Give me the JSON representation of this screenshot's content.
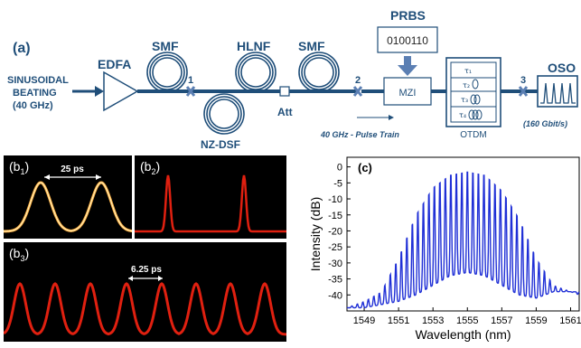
{
  "setup": {
    "panel_label": "(a)",
    "input_label_lines": [
      "SINUSOIDAL",
      "BEATING",
      "(40 GHz)"
    ],
    "edfa": "EDFA",
    "smf1": "SMF",
    "hlnf": "HLNF",
    "smf2": "SMF",
    "nzdsf": "NZ-DSF",
    "att": "Att",
    "prbs": "PRBS",
    "prbs_code": "0100110",
    "mzi": "MZI",
    "otdm": "OTDM",
    "oso": "OSO",
    "oso_rate": "(160 Gbit/s)",
    "pulse_train": "40 GHz - Pulse Train",
    "points": [
      "1",
      "2",
      "3"
    ],
    "delays": [
      "τ₁",
      "τ₂",
      "τ₃",
      "τ₄"
    ]
  },
  "osc": {
    "b1": {
      "label_main": "(b",
      "label_sub": "1",
      "label_end": ")",
      "annotation": "25 ps"
    },
    "b2": {
      "label_main": "(b",
      "label_sub": "2",
      "label_end": ")"
    },
    "b3": {
      "label_main": "(b",
      "label_sub": "3",
      "label_end": ")",
      "annotation": "6.25 ps"
    }
  },
  "colors": {
    "line": "#1f4e79",
    "point_marker": "#5b7fb3",
    "spectrum": "#1f2fd6",
    "trace_b1": "#ffb347",
    "trace_b3": "#e02010"
  },
  "chart_data": {
    "type": "line",
    "panel_label": "(c)",
    "xlabel": "Wavelength (nm)",
    "ylabel": "Intensity (dB)",
    "xlim": [
      1548,
      1561.5
    ],
    "ylim": [
      -45,
      3
    ],
    "xticks": [
      1549,
      1551,
      1553,
      1555,
      1557,
      1559,
      1561
    ],
    "yticks": [
      0,
      -5,
      -10,
      -15,
      -20,
      -25,
      -30,
      -35,
      -40
    ],
    "comb_spacing_nm": 0.32,
    "center_nm": 1555.0,
    "series": [
      {
        "description_free": true,
        "envelope_x": [
          1548,
          1549,
          1550,
          1551,
          1552,
          1553,
          1554,
          1555,
          1556,
          1557,
          1558,
          1559,
          1560,
          1561,
          1561.5
        ],
        "envelope_peak_y": [
          -44,
          -42,
          -39,
          -28,
          -14,
          -5,
          -1,
          0,
          -1,
          -6,
          -15,
          -28,
          -37,
          -39,
          -40
        ],
        "envelope_floor_y": [
          -44,
          -44,
          -43,
          -42,
          -40,
          -37,
          -34,
          -33,
          -34,
          -37,
          -40,
          -41,
          -39,
          -39,
          -39
        ]
      }
    ]
  }
}
